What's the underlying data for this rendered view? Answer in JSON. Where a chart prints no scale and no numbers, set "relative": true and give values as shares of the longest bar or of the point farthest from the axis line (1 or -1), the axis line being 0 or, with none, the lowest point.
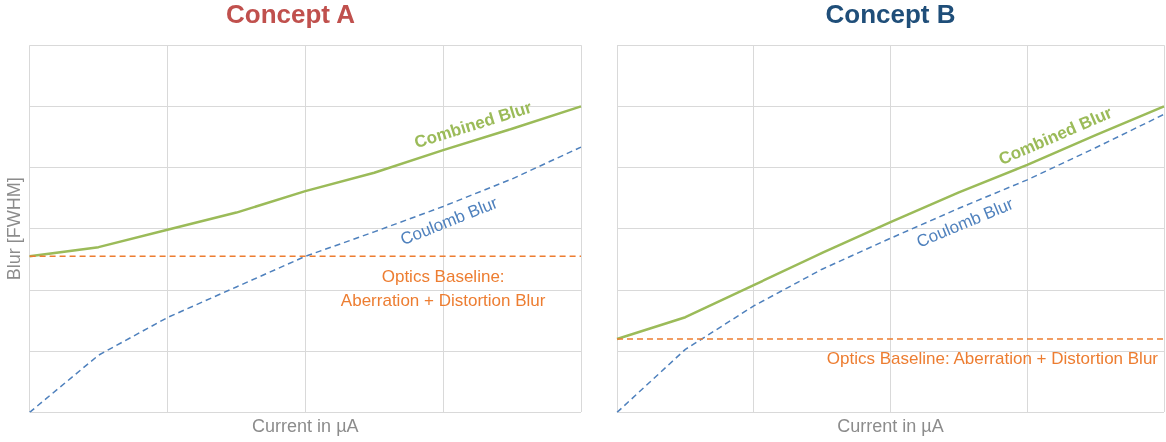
{
  "chart_data": [
    {
      "type": "line",
      "title": "Concept A",
      "xlabel": "Current in µA",
      "ylabel": "Blur [FWHM]",
      "relative": true,
      "grid": true,
      "tick_labels": false,
      "marker": "none",
      "legend": false,
      "categories": [
        null,
        null,
        null,
        null,
        null,
        null,
        null,
        null,
        null
      ],
      "series": [
        {
          "name": "Combined Blur",
          "color": "#9bbb59",
          "line_style": "solid",
          "values": [
            0.51,
            0.54,
            0.597,
            0.653,
            0.723,
            0.783,
            0.857,
            0.927,
            1
          ]
        },
        {
          "name": "Coulomb Blur",
          "color": "#4f81bd",
          "line_style": "dashed",
          "values": [
            0,
            0.187,
            0.31,
            0.41,
            0.51,
            0.59,
            0.673,
            0.763,
            0.867
          ]
        }
      ],
      "ref_lines": [
        {
          "axis": "y",
          "value": 0.51,
          "label": "Optics Baseline: Aberration + Distortion Blur",
          "color": "#ed7d31",
          "line_style": "dashed"
        }
      ]
    },
    {
      "type": "line",
      "title": "Concept B",
      "xlabel": "Current in µA",
      "relative": true,
      "grid": true,
      "tick_labels": false,
      "marker": "none",
      "legend": false,
      "categories": [
        null,
        null,
        null,
        null,
        null,
        null,
        null,
        null,
        null
      ],
      "series": [
        {
          "name": "Combined Blur",
          "color": "#9bbb59",
          "line_style": "solid",
          "values": [
            0.24,
            0.311,
            0.416,
            0.521,
            0.622,
            0.719,
            0.809,
            0.906,
            1
          ]
        },
        {
          "name": "Coulomb Blur",
          "color": "#4f81bd",
          "line_style": "dashed",
          "values": [
            0,
            0.206,
            0.348,
            0.468,
            0.569,
            0.667,
            0.76,
            0.865,
            0.974
          ]
        }
      ],
      "ref_lines": [
        {
          "axis": "y",
          "value": 0.24,
          "label": "Optics Baseline: Aberration + Distortion Blur",
          "color": "#ed7d31",
          "line_style": "dashed"
        }
      ]
    }
  ]
}
